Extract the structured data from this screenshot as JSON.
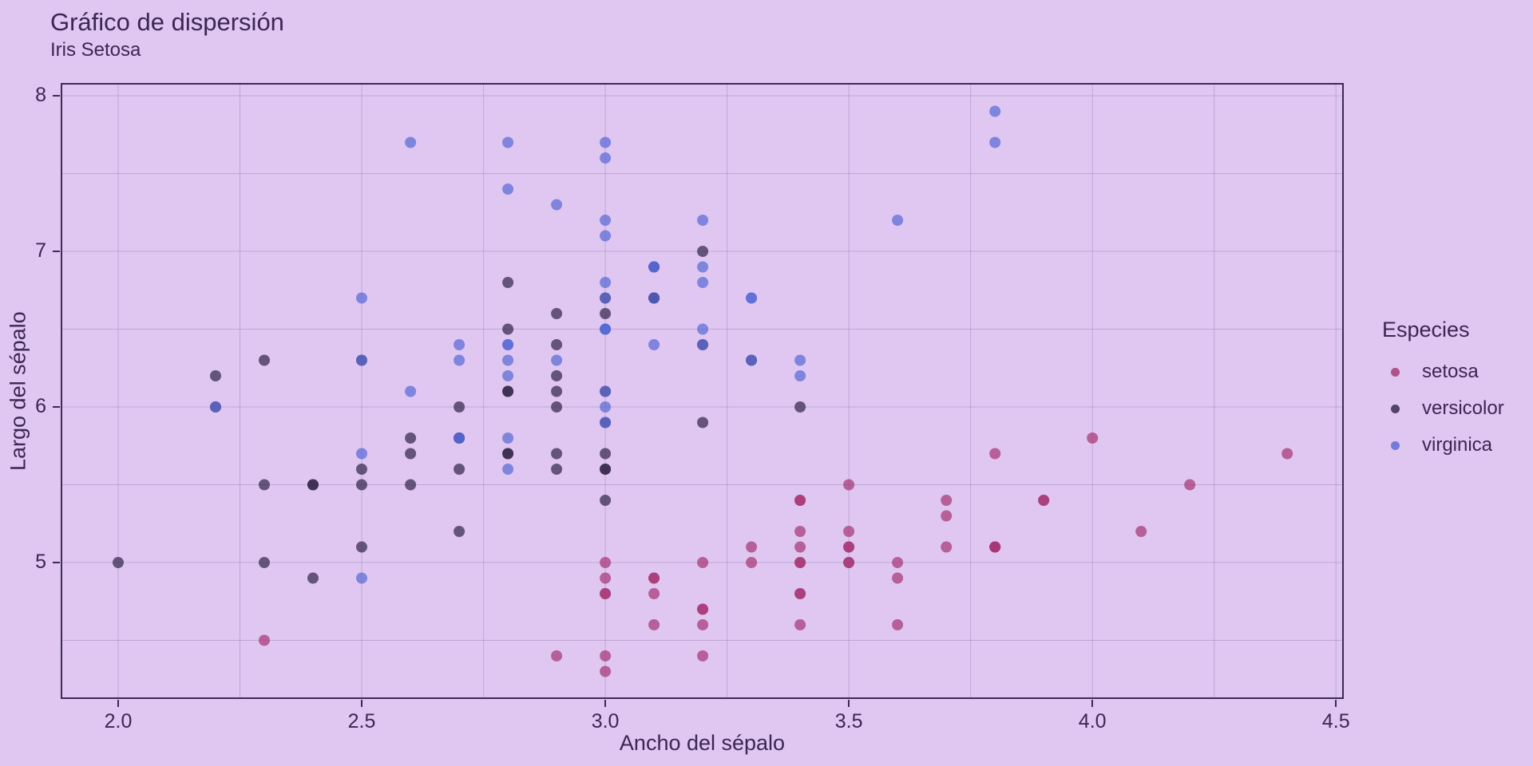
{
  "chart_data": {
    "type": "scatter",
    "title": "Gráfico de dispersión",
    "subtitle": "Iris Setosa",
    "xlabel": "Ancho del sépalo",
    "ylabel": "Largo del sépalo",
    "legend_title": "Especies",
    "legend_position": "middle-right",
    "grid": true,
    "x_range": [
      1.882,
      4.516
    ],
    "y_range": [
      4.123,
      8.082
    ],
    "x_ticks": {
      "values": [
        2.0,
        2.5,
        3.0,
        3.5,
        4.0,
        4.5
      ],
      "labels": [
        "2.0",
        "2.5",
        "3.0",
        "3.5",
        "4.0",
        "4.5"
      ]
    },
    "y_ticks": {
      "values": [
        5,
        6,
        7,
        8
      ],
      "labels": [
        "5",
        "6",
        "7",
        "8"
      ]
    },
    "x_gridlines": [
      2.0,
      2.25,
      2.5,
      2.75,
      3.0,
      3.25,
      3.5,
      3.75,
      4.0,
      4.25,
      4.5
    ],
    "y_gridlines": [
      4.5,
      5.0,
      5.5,
      6.0,
      6.5,
      7.0,
      7.5,
      8.0
    ],
    "marker_opacity": 0.7,
    "marker_radius": 7,
    "series": [
      {
        "name": "setosa",
        "color": "#a53372",
        "x": [
          3.5,
          3.0,
          3.2,
          3.1,
          3.6,
          3.9,
          3.4,
          3.4,
          2.9,
          3.1,
          3.7,
          3.4,
          3.0,
          3.0,
          4.0,
          4.4,
          3.9,
          3.5,
          3.8,
          3.8,
          3.4,
          3.7,
          3.6,
          3.3,
          3.4,
          3.0,
          3.4,
          3.5,
          3.4,
          3.2,
          3.1,
          3.4,
          4.1,
          4.2,
          3.1,
          3.2,
          3.5,
          3.6,
          3.0,
          3.4,
          3.5,
          2.3,
          3.2,
          3.5,
          3.8,
          3.0,
          3.8,
          3.2,
          3.7,
          3.3
        ],
        "y": [
          5.1,
          4.9,
          4.7,
          4.6,
          5.0,
          5.4,
          4.6,
          5.0,
          4.4,
          4.9,
          5.4,
          4.8,
          4.8,
          4.3,
          5.8,
          5.7,
          5.4,
          5.1,
          5.7,
          5.1,
          5.4,
          5.1,
          4.6,
          5.1,
          4.8,
          5.0,
          5.0,
          5.2,
          5.2,
          4.7,
          4.8,
          5.4,
          5.2,
          5.5,
          4.9,
          5.0,
          5.5,
          4.9,
          4.4,
          5.1,
          5.0,
          4.5,
          4.4,
          5.0,
          5.1,
          4.8,
          5.1,
          4.6,
          5.3,
          5.0
        ]
      },
      {
        "name": "versicolor",
        "color": "#302346",
        "x": [
          3.2,
          3.2,
          3.1,
          2.3,
          2.8,
          2.8,
          3.3,
          2.4,
          2.9,
          2.7,
          2.0,
          3.0,
          2.2,
          2.9,
          2.9,
          3.1,
          3.0,
          2.7,
          2.2,
          2.5,
          3.2,
          2.8,
          2.5,
          2.8,
          2.9,
          3.0,
          2.8,
          3.0,
          2.9,
          2.6,
          2.4,
          2.4,
          2.7,
          2.7,
          3.0,
          3.4,
          3.1,
          2.3,
          3.0,
          2.5,
          2.6,
          3.0,
          2.6,
          2.3,
          2.7,
          3.0,
          2.9,
          2.9,
          2.5,
          2.8
        ],
        "y": [
          7.0,
          6.4,
          6.9,
          5.5,
          6.5,
          5.7,
          6.3,
          4.9,
          6.6,
          5.2,
          5.0,
          5.9,
          6.0,
          6.1,
          5.6,
          6.7,
          5.6,
          5.8,
          6.2,
          5.6,
          5.9,
          6.1,
          6.3,
          6.1,
          6.4,
          6.6,
          6.8,
          6.7,
          6.0,
          5.7,
          5.5,
          5.5,
          5.8,
          6.0,
          5.4,
          6.0,
          6.7,
          6.3,
          5.6,
          5.5,
          5.5,
          6.1,
          5.8,
          5.0,
          5.6,
          5.7,
          5.7,
          6.2,
          5.1,
          5.7
        ]
      },
      {
        "name": "virginica",
        "color": "#5668d4",
        "x": [
          3.3,
          2.7,
          3.0,
          2.9,
          3.0,
          3.0,
          2.5,
          2.9,
          2.5,
          3.6,
          3.2,
          2.7,
          3.0,
          2.5,
          2.8,
          3.2,
          3.0,
          3.8,
          2.6,
          2.2,
          3.2,
          2.8,
          2.8,
          2.7,
          3.3,
          3.2,
          2.8,
          3.0,
          2.8,
          3.0,
          2.8,
          3.8,
          2.8,
          2.8,
          2.6,
          3.0,
          3.4,
          3.1,
          3.0,
          3.1,
          3.1,
          3.1,
          2.7,
          3.2,
          3.3,
          3.0,
          2.5,
          3.0,
          3.4,
          3.0
        ],
        "y": [
          6.3,
          5.8,
          7.1,
          6.3,
          6.5,
          7.6,
          4.9,
          7.3,
          6.7,
          7.2,
          6.5,
          6.4,
          6.8,
          5.7,
          5.8,
          6.4,
          6.5,
          7.7,
          7.7,
          6.0,
          6.9,
          5.6,
          7.7,
          6.3,
          6.7,
          7.2,
          6.2,
          6.1,
          6.4,
          7.2,
          7.4,
          7.9,
          6.4,
          6.3,
          6.1,
          7.7,
          6.3,
          6.4,
          6.0,
          6.9,
          6.7,
          6.9,
          5.8,
          6.8,
          6.7,
          6.7,
          6.3,
          6.5,
          6.2,
          5.9
        ]
      }
    ]
  },
  "colors": {
    "background": "#dfc7f2",
    "text": "#3b2751",
    "axis_line": "#3d2b55",
    "gridline": "rgba(64,44,94,0.2)",
    "setosa": "#a53372",
    "versicolor": "#302346",
    "virginica": "#5668d4"
  }
}
